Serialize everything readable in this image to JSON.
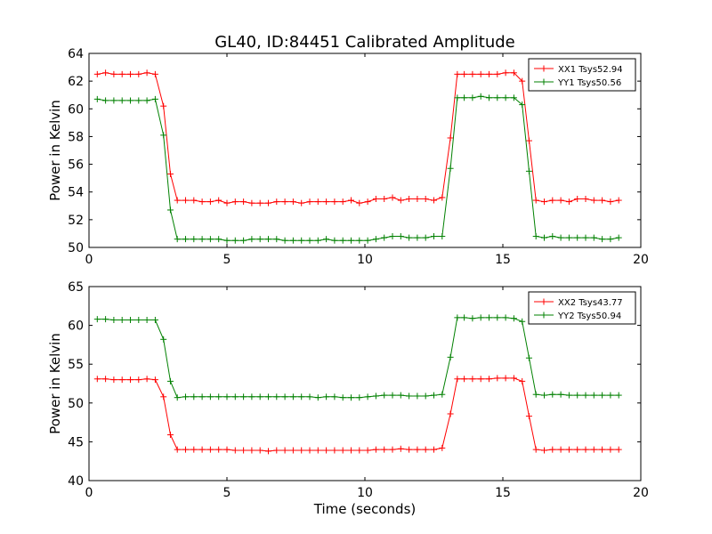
{
  "figure": {
    "title": "GL40, ID:84451 Calibrated Amplitude"
  },
  "chart_data": [
    {
      "type": "line",
      "title": "GL40, ID:84451 Calibrated Amplitude",
      "xlabel": "",
      "ylabel": "Power in Kelvin",
      "xlim": [
        0,
        20
      ],
      "ylim": [
        50,
        64
      ],
      "xticks": [
        0,
        5,
        10,
        15,
        20
      ],
      "yticks": [
        50,
        52,
        54,
        56,
        58,
        60,
        62,
        64
      ],
      "grid": false,
      "legend_position": "top-right",
      "x": [
        0.3,
        0.6,
        0.9,
        1.2,
        1.5,
        1.8,
        2.1,
        2.4,
        2.7,
        2.95,
        3.2,
        3.5,
        3.8,
        4.1,
        4.4,
        4.7,
        5.0,
        5.3,
        5.6,
        5.9,
        6.2,
        6.5,
        6.8,
        7.1,
        7.4,
        7.7,
        8.0,
        8.3,
        8.6,
        8.9,
        9.2,
        9.5,
        9.8,
        10.1,
        10.4,
        10.7,
        11.0,
        11.3,
        11.6,
        11.9,
        12.2,
        12.5,
        12.8,
        13.1,
        13.35,
        13.6,
        13.9,
        14.2,
        14.5,
        14.8,
        15.1,
        15.4,
        15.7,
        15.95,
        16.2,
        16.5,
        16.8,
        17.1,
        17.4,
        17.7,
        18.0,
        18.3,
        18.6,
        18.9,
        19.2
      ],
      "series": [
        {
          "name": "XX1 Tsys52.94",
          "color": "#ff0000",
          "values": [
            62.5,
            62.6,
            62.5,
            62.5,
            62.5,
            62.5,
            62.6,
            62.5,
            60.2,
            55.3,
            53.4,
            53.4,
            53.4,
            53.3,
            53.3,
            53.4,
            53.2,
            53.3,
            53.3,
            53.2,
            53.2,
            53.2,
            53.3,
            53.3,
            53.3,
            53.2,
            53.3,
            53.3,
            53.3,
            53.3,
            53.3,
            53.4,
            53.2,
            53.3,
            53.5,
            53.5,
            53.6,
            53.4,
            53.5,
            53.5,
            53.5,
            53.4,
            53.6,
            57.9,
            62.5,
            62.5,
            62.5,
            62.5,
            62.5,
            62.5,
            62.6,
            62.6,
            62.0,
            57.7,
            53.4,
            53.3,
            53.4,
            53.4,
            53.3,
            53.5,
            53.5,
            53.4,
            53.4,
            53.3,
            53.4
          ]
        },
        {
          "name": "YY1 Tsys50.56",
          "color": "#008000",
          "values": [
            60.7,
            60.6,
            60.6,
            60.6,
            60.6,
            60.6,
            60.6,
            60.7,
            58.1,
            52.7,
            50.6,
            50.6,
            50.6,
            50.6,
            50.6,
            50.6,
            50.5,
            50.5,
            50.5,
            50.6,
            50.6,
            50.6,
            50.6,
            50.5,
            50.5,
            50.5,
            50.5,
            50.5,
            50.6,
            50.5,
            50.5,
            50.5,
            50.5,
            50.5,
            50.6,
            50.7,
            50.8,
            50.8,
            50.7,
            50.7,
            50.7,
            50.8,
            50.8,
            55.7,
            60.8,
            60.8,
            60.8,
            60.9,
            60.8,
            60.8,
            60.8,
            60.8,
            60.3,
            55.5,
            50.8,
            50.7,
            50.8,
            50.7,
            50.7,
            50.7,
            50.7,
            50.7,
            50.6,
            50.6,
            50.7
          ]
        }
      ]
    },
    {
      "type": "line",
      "title": "",
      "xlabel": "Time (seconds)",
      "ylabel": "Power in Kelvin",
      "xlim": [
        0,
        20
      ],
      "ylim": [
        40,
        65
      ],
      "xticks": [
        0,
        5,
        10,
        15,
        20
      ],
      "yticks": [
        40,
        45,
        50,
        55,
        60,
        65
      ],
      "grid": false,
      "legend_position": "top-right",
      "x": [
        0.3,
        0.6,
        0.9,
        1.2,
        1.5,
        1.8,
        2.1,
        2.4,
        2.7,
        2.95,
        3.2,
        3.5,
        3.8,
        4.1,
        4.4,
        4.7,
        5.0,
        5.3,
        5.6,
        5.9,
        6.2,
        6.5,
        6.8,
        7.1,
        7.4,
        7.7,
        8.0,
        8.3,
        8.6,
        8.9,
        9.2,
        9.5,
        9.8,
        10.1,
        10.4,
        10.7,
        11.0,
        11.3,
        11.6,
        11.9,
        12.2,
        12.5,
        12.8,
        13.1,
        13.35,
        13.6,
        13.9,
        14.2,
        14.5,
        14.8,
        15.1,
        15.4,
        15.7,
        15.95,
        16.2,
        16.5,
        16.8,
        17.1,
        17.4,
        17.7,
        18.0,
        18.3,
        18.6,
        18.9,
        19.2
      ],
      "series": [
        {
          "name": "XX2 Tsys43.77",
          "color": "#ff0000",
          "values": [
            53.1,
            53.1,
            53.0,
            53.0,
            53.0,
            53.0,
            53.1,
            53.0,
            50.8,
            45.9,
            44.0,
            44.0,
            44.0,
            44.0,
            44.0,
            44.0,
            44.0,
            43.9,
            43.9,
            43.9,
            43.9,
            43.8,
            43.9,
            43.9,
            43.9,
            43.9,
            43.9,
            43.9,
            43.9,
            43.9,
            43.9,
            43.9,
            43.9,
            43.9,
            44.0,
            44.0,
            44.0,
            44.1,
            44.0,
            44.0,
            44.0,
            44.0,
            44.2,
            48.6,
            53.1,
            53.1,
            53.1,
            53.1,
            53.1,
            53.2,
            53.2,
            53.2,
            52.8,
            48.3,
            44.0,
            43.9,
            44.0,
            44.0,
            44.0,
            44.0,
            44.0,
            44.0,
            44.0,
            44.0,
            44.0
          ]
        },
        {
          "name": "YY2 Tsys50.94",
          "color": "#008000",
          "values": [
            60.8,
            60.8,
            60.7,
            60.7,
            60.7,
            60.7,
            60.7,
            60.7,
            58.2,
            52.8,
            50.7,
            50.8,
            50.8,
            50.8,
            50.8,
            50.8,
            50.8,
            50.8,
            50.8,
            50.8,
            50.8,
            50.8,
            50.8,
            50.8,
            50.8,
            50.8,
            50.8,
            50.7,
            50.8,
            50.8,
            50.7,
            50.7,
            50.7,
            50.8,
            50.9,
            51.0,
            51.0,
            51.0,
            50.9,
            50.9,
            50.9,
            51.0,
            51.1,
            55.9,
            61.0,
            61.0,
            60.9,
            61.0,
            61.0,
            61.0,
            61.0,
            60.9,
            60.5,
            55.8,
            51.1,
            51.0,
            51.1,
            51.1,
            51.0,
            51.0,
            51.0,
            51.0,
            51.0,
            51.0,
            51.0
          ]
        }
      ]
    }
  ]
}
